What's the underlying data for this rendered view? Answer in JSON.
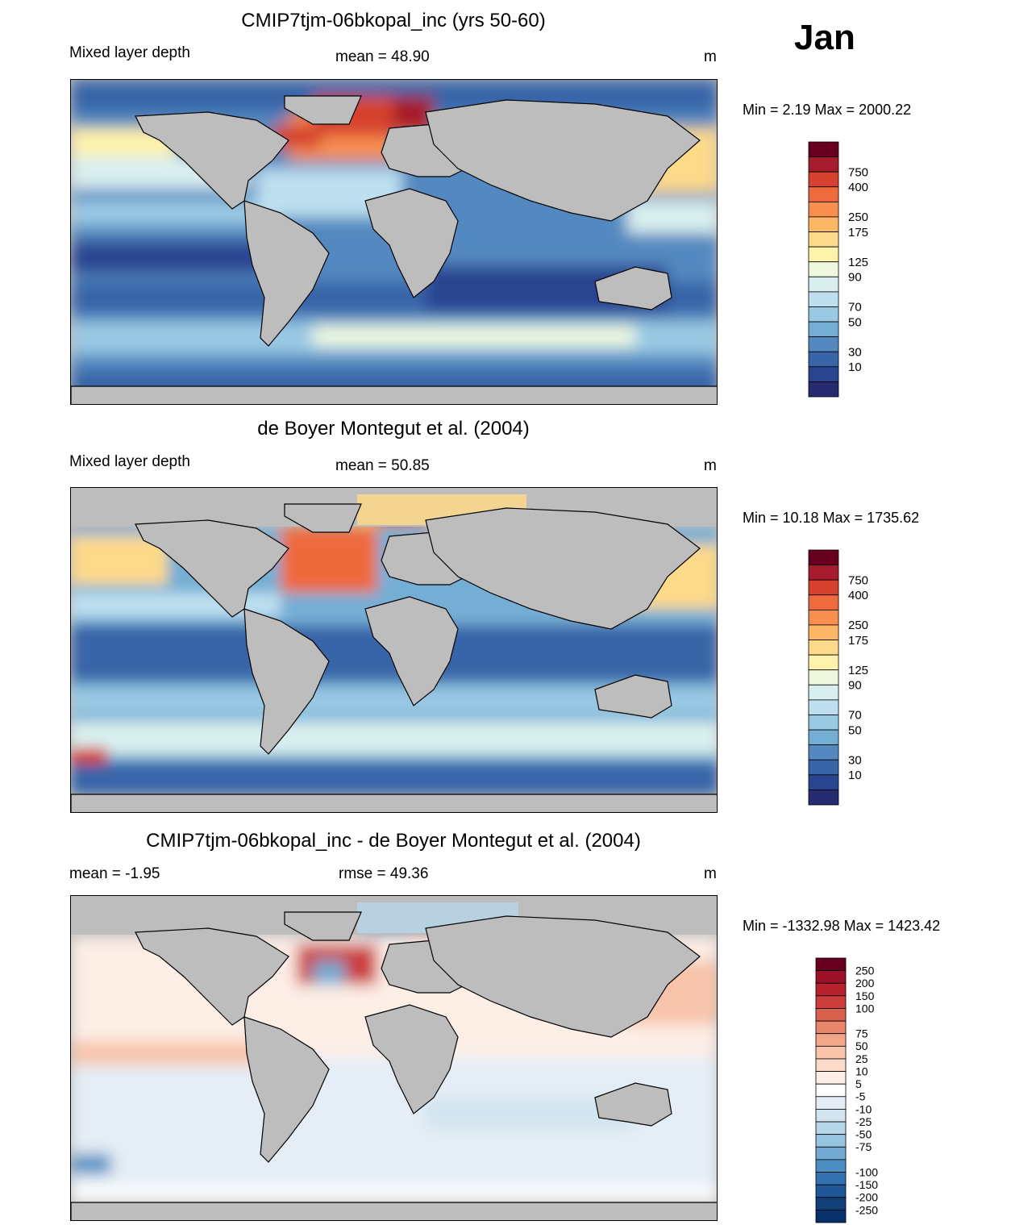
{
  "month": "Jan",
  "panels": [
    {
      "title": "CMIP7tjm-06bkopal_inc (yrs 50-60)",
      "left_label": "Mixed layer depth",
      "center_label": "mean =  48.90",
      "units": "m",
      "minmax": "Min =   2.19 Max = 2000.22",
      "colorbar": {
        "labels": [
          "750",
          "400",
          "250",
          "175",
          "125",
          "90",
          "70",
          "50",
          "30",
          "10"
        ],
        "colors": [
          "#67001f",
          "#a61c2c",
          "#d6422f",
          "#ee6b3d",
          "#f88f4f",
          "#fcb766",
          "#fdd98a",
          "#fff2ab",
          "#eef8df",
          "#d9efef",
          "#bddff0",
          "#9ac9e3",
          "#74aed4",
          "#5389c0",
          "#3865a8",
          "#2a4590",
          "#262a6e"
        ]
      },
      "description": "model mixed layer depth"
    },
    {
      "title": "de Boyer Montegut et al. (2004)",
      "left_label": "Mixed layer depth",
      "center_label": "mean =  50.85",
      "units": "m",
      "minmax": "Min =  10.18 Max = 1735.62",
      "colorbar": {
        "labels": [
          "750",
          "400",
          "250",
          "175",
          "125",
          "90",
          "70",
          "50",
          "30",
          "10"
        ],
        "colors": [
          "#67001f",
          "#a61c2c",
          "#d6422f",
          "#ee6b3d",
          "#f88f4f",
          "#fcb766",
          "#fdd98a",
          "#fff2ab",
          "#eef8df",
          "#d9efef",
          "#bddff0",
          "#9ac9e3",
          "#74aed4",
          "#5389c0",
          "#3865a8",
          "#2a4590",
          "#262a6e"
        ]
      }
    },
    {
      "title": "CMIP7tjm-06bkopal_inc - de Boyer Montegut et al. (2004)",
      "left_label": "mean =  -1.95",
      "center_label": "rmse =  49.36",
      "units": "m",
      "minmax": "Min = -1332.98 Max = 1423.42",
      "colorbar": {
        "labels": [
          "250",
          "200",
          "150",
          "100",
          "75",
          "50",
          "25",
          "10",
          "5",
          "-5",
          "-10",
          "-25",
          "-50",
          "-75",
          "-100",
          "-150",
          "-200",
          "-250"
        ],
        "colors": [
          "#67001f",
          "#9c1127",
          "#b8222e",
          "#cc3e3c",
          "#d9604b",
          "#e7866a",
          "#f2a78a",
          "#f8c4ab",
          "#fbdccb",
          "#fdeee6",
          "#ffffff",
          "#e5eef6",
          "#d1e4f0",
          "#b7d6ea",
          "#97c4df",
          "#72aad1",
          "#4d8ec2",
          "#3371b0",
          "#1f5797",
          "#133f78",
          "#08306b"
        ]
      }
    }
  ]
}
